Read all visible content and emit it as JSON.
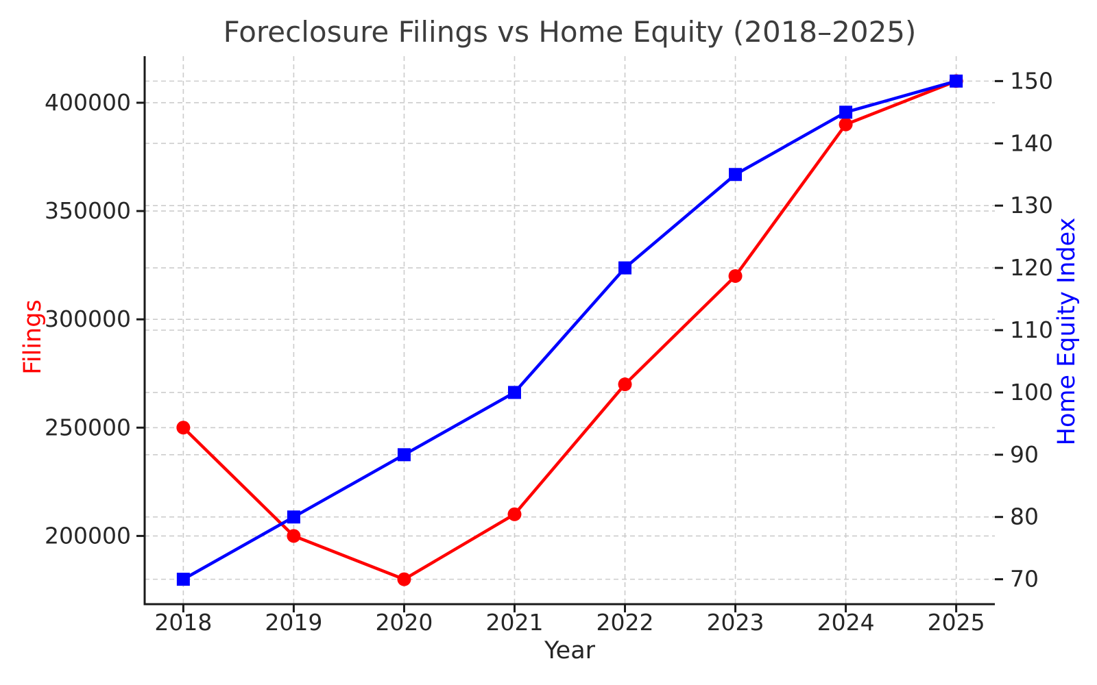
{
  "chart_data": {
    "type": "line",
    "title": "Foreclosure Filings vs Home Equity (2018–2025)",
    "xlabel": "Year",
    "x": [
      2018,
      2019,
      2020,
      2021,
      2022,
      2023,
      2024,
      2025
    ],
    "x_tick_labels": [
      "2018",
      "2019",
      "2020",
      "2021",
      "2022",
      "2023",
      "2024",
      "2025"
    ],
    "series": [
      {
        "name": "Filings",
        "axis": "left",
        "color": "#ff0000",
        "marker": "circle",
        "values": [
          250000,
          200000,
          180000,
          210000,
          270000,
          320000,
          390000,
          410000
        ]
      },
      {
        "name": "Home Equity Index",
        "axis": "right",
        "color": "#0000ff",
        "marker": "square",
        "values": [
          70,
          80,
          90,
          100,
          120,
          135,
          145,
          150
        ]
      }
    ],
    "left_axis": {
      "label": "Filings",
      "color": "#ff0000",
      "ticks": [
        200000,
        250000,
        300000,
        350000,
        400000
      ],
      "tick_labels": [
        "200000",
        "250000",
        "300000",
        "350000",
        "400000"
      ],
      "range": [
        168500,
        421500
      ]
    },
    "right_axis": {
      "label": "Home Equity Index",
      "color": "#0000ff",
      "ticks": [
        70,
        80,
        90,
        100,
        110,
        120,
        130,
        140,
        150
      ],
      "tick_labels": [
        "70",
        "80",
        "90",
        "100",
        "110",
        "120",
        "130",
        "140",
        "150"
      ],
      "range": [
        66,
        154
      ]
    },
    "x_axis": {
      "range": [
        2017.65,
        2025.35
      ]
    },
    "grid": {
      "on": true,
      "style": "dashed",
      "color": "#cccccc"
    },
    "legend": "none",
    "background": "#ffffff",
    "text_color": "#262626",
    "title_color": "#3d3d3d",
    "spine_color": "#1a1a1a"
  }
}
